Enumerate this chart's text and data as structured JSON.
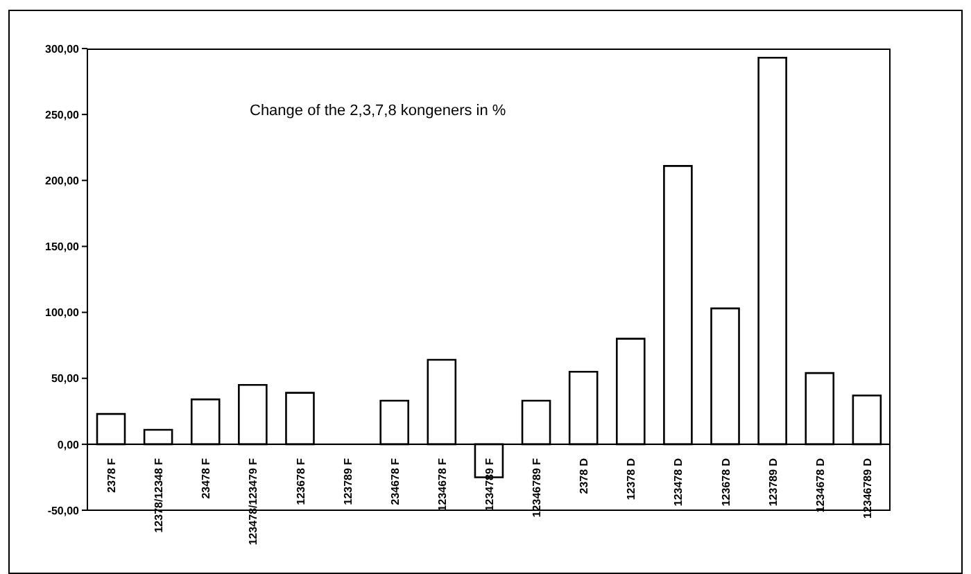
{
  "chart_data": {
    "type": "bar",
    "title": "Change of the 2,3,7,8 kongeners in %",
    "categories": [
      "2378 F",
      "12378/12348 F",
      "23478 F",
      "123478/123479 F",
      "123678 F",
      "123789 F",
      "234678 F",
      "1234678 F",
      "1234789 F",
      "12346789 F",
      "2378 D",
      "12378 D",
      "123478 D",
      "123678 D",
      "123789 D",
      "1234678 D",
      "12346789 D"
    ],
    "values": [
      23,
      11,
      34,
      45,
      39,
      0,
      33,
      64,
      -25,
      33,
      55,
      80,
      211,
      103,
      293,
      54,
      37
    ],
    "color": "#ffffff",
    "ylim": [
      -50,
      300
    ],
    "yticks": [
      {
        "value": -50,
        "label": "-50,00"
      },
      {
        "value": 0,
        "label": "0,00"
      },
      {
        "value": 50,
        "label": "50,00"
      },
      {
        "value": 100,
        "label": "100,00"
      },
      {
        "value": 150,
        "label": "150,00"
      },
      {
        "value": 200,
        "label": "200,00"
      },
      {
        "value": 250,
        "label": "250,00"
      },
      {
        "value": 300,
        "label": "300,00"
      }
    ]
  }
}
